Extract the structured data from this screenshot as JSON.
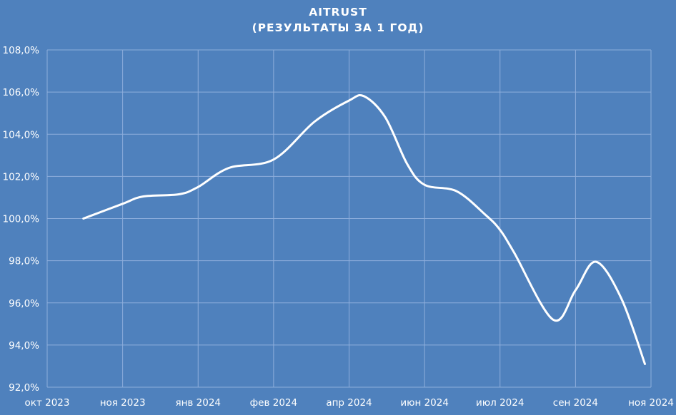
{
  "chart_data": {
    "type": "line",
    "title": "AITRUST",
    "subtitle": "(РЕЗУЛЬТАТЫ ЗА 1 ГОД)",
    "xlabel": "",
    "ylabel": "",
    "ylim": [
      92,
      108
    ],
    "y_ticks": [
      "92,0%",
      "94,0%",
      "96,0%",
      "98,0%",
      "100,0%",
      "102,0%",
      "104,0%",
      "106,0%",
      "108,0%"
    ],
    "x_ticks": [
      "окт 2023",
      "ноя 2023",
      "янв 2024",
      "фев 2024",
      "апр 2024",
      "июн 2024",
      "июл 2024",
      "сен 2024",
      "ноя 2024"
    ],
    "grid": true,
    "legend": "none",
    "line_color": "#ffffff",
    "background_color": "#4f81bd",
    "grid_color": "#8eaedc",
    "series": [
      {
        "name": "AITRUST",
        "x_frac": [
          0.06,
          0.125,
          0.159,
          0.218,
          0.25,
          0.301,
          0.375,
          0.443,
          0.5,
          0.525,
          0.56,
          0.596,
          0.625,
          0.678,
          0.725,
          0.749,
          0.773,
          0.838,
          0.875,
          0.909,
          0.951,
          0.99
        ],
        "values": [
          100.0,
          100.7,
          101.05,
          101.15,
          101.5,
          102.4,
          102.8,
          104.6,
          105.6,
          105.8,
          104.8,
          102.6,
          101.6,
          101.3,
          100.2,
          99.5,
          98.4,
          95.2,
          96.6,
          97.95,
          96.2,
          93.1
        ]
      }
    ]
  }
}
